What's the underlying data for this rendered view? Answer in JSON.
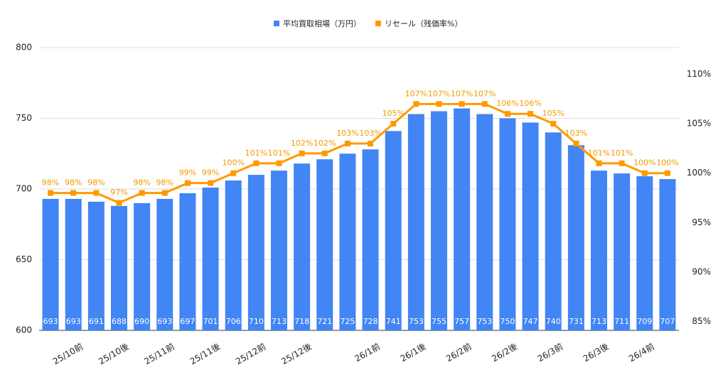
{
  "chart_data": {
    "type": "bar_line",
    "categories": [
      "25/10前",
      null,
      "25/10後",
      null,
      "25/11前",
      null,
      "25/11後",
      null,
      "25/12前",
      null,
      "25/12後",
      null,
      null,
      "26/1前",
      null,
      "26/1後",
      null,
      "26/2前",
      null,
      "26/2後",
      null,
      "26/3前",
      null,
      "26/3後",
      null,
      "26/4前",
      null,
      null
    ],
    "series": [
      {
        "name": "平均買取相場（万円）",
        "color": "#4285f4",
        "values": [
          693,
          693,
          691,
          688,
          690,
          693,
          697,
          701,
          706,
          710,
          713,
          718,
          721,
          725,
          728,
          741,
          753,
          755,
          757,
          753,
          750,
          747,
          740,
          731,
          713,
          711,
          709,
          707
        ]
      },
      {
        "name": "リセール（残価率%）",
        "color": "#ff9900",
        "axis": "y2",
        "values": [
          98,
          98,
          98,
          97,
          98,
          98,
          99,
          99,
          100,
          101,
          101,
          102,
          102,
          103,
          103,
          105,
          107,
          107,
          107,
          107,
          106,
          106,
          105,
          103,
          101,
          101,
          100,
          100
        ],
        "value_labels": [
          "98%",
          "98%",
          "98%",
          "97%",
          "98%",
          "98%",
          "99%",
          "99%",
          "100%",
          "101%",
          "101%",
          "102%",
          "102%",
          "103%",
          "103%",
          "105%",
          "107%",
          "107%",
          "107%",
          "107%",
          "106%",
          "106%",
          "105%",
          "103%",
          "101%",
          "101%",
          "100%",
          "100%"
        ]
      }
    ],
    "ylim": [
      600,
      800
    ],
    "yticks": [
      600,
      650,
      700,
      750,
      800
    ],
    "y2lim": [
      84.1,
      112.7
    ],
    "y2ticks": [
      {
        "value": 85,
        "label": "85%"
      },
      {
        "value": 90,
        "label": "90%"
      },
      {
        "value": 95,
        "label": "95%"
      },
      {
        "value": 100,
        "label": "100%"
      },
      {
        "value": 105,
        "label": "105%"
      },
      {
        "value": 110,
        "label": "110%"
      }
    ],
    "grid": true,
    "legend": "top"
  }
}
